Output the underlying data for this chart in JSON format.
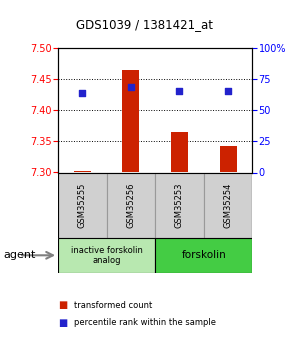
{
  "title": "GDS1039 / 1381421_at",
  "samples": [
    "GSM35255",
    "GSM35256",
    "GSM35253",
    "GSM35254"
  ],
  "bar_values": [
    7.302,
    7.465,
    7.365,
    7.342
  ],
  "bar_bottom": 7.3,
  "dot_values": [
    7.428,
    7.438,
    7.432,
    7.432
  ],
  "ylim": [
    7.3,
    7.5
  ],
  "yticks_left": [
    7.3,
    7.35,
    7.4,
    7.45,
    7.5
  ],
  "yticks_right": [
    0,
    25,
    50,
    75,
    100
  ],
  "bar_color": "#cc2200",
  "dot_color": "#2222cc",
  "groups": [
    {
      "label": "inactive forskolin\nanalog",
      "color": "#b8e8b0",
      "span": [
        0,
        2
      ]
    },
    {
      "label": "forskolin",
      "color": "#44cc44",
      "span": [
        2,
        4
      ]
    }
  ],
  "agent_label": "agent",
  "legend_items": [
    {
      "color": "#cc2200",
      "label": "transformed count"
    },
    {
      "color": "#2222cc",
      "label": "percentile rank within the sample"
    }
  ],
  "grid_yticks": [
    7.35,
    7.4,
    7.45
  ],
  "sample_box_color": "#d0d0d0",
  "sample_box_edge": "#999999",
  "bar_width": 0.35
}
